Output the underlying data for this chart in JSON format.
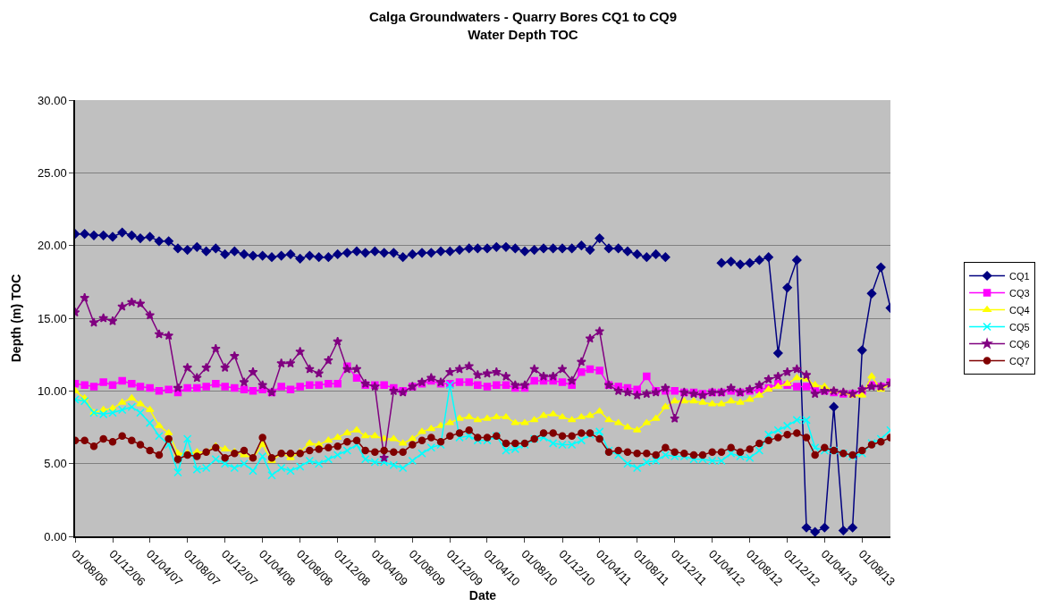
{
  "chart_data": {
    "type": "line",
    "title": "Calga Groundwaters - Quarry Bores CQ1 to CQ9",
    "subtitle": "Water Depth TOC",
    "xlabel": "Date",
    "ylabel": "Depth (m) TOC",
    "x": [
      "2006-08",
      "2006-09",
      "2006-10",
      "2006-11",
      "2006-12",
      "2007-01",
      "2007-02",
      "2007-03",
      "2007-04",
      "2007-05",
      "2007-06",
      "2007-07",
      "2007-08",
      "2007-09",
      "2007-10",
      "2007-11",
      "2007-12",
      "2008-01",
      "2008-02",
      "2008-03",
      "2008-04",
      "2008-05",
      "2008-06",
      "2008-07",
      "2008-08",
      "2008-09",
      "2008-10",
      "2008-11",
      "2008-12",
      "2009-01",
      "2009-02",
      "2009-03",
      "2009-04",
      "2009-05",
      "2009-06",
      "2009-07",
      "2009-08",
      "2009-09",
      "2009-10",
      "2009-11",
      "2009-12",
      "2010-01",
      "2010-02",
      "2010-03",
      "2010-04",
      "2010-05",
      "2010-06",
      "2010-07",
      "2010-08",
      "2010-09",
      "2010-10",
      "2010-11",
      "2010-12",
      "2011-01",
      "2011-02",
      "2011-03",
      "2011-04",
      "2011-05",
      "2011-06",
      "2011-07",
      "2011-08",
      "2011-09",
      "2011-10",
      "2011-11",
      "2011-12",
      "2012-01",
      "2012-02",
      "2012-03",
      "2012-04",
      "2012-05",
      "2012-06",
      "2012-07",
      "2012-08",
      "2012-09",
      "2012-10",
      "2012-11",
      "2012-12",
      "2013-01",
      "2013-02",
      "2013-03",
      "2013-04",
      "2013-05",
      "2013-06",
      "2013-07",
      "2013-08",
      "2013-09",
      "2013-10",
      "2013-11"
    ],
    "series": [
      {
        "name": "CQ1",
        "color": "#000080",
        "marker": "diamond",
        "values": [
          20.8,
          20.8,
          20.7,
          20.7,
          20.6,
          20.9,
          20.7,
          20.5,
          20.6,
          20.3,
          20.3,
          19.8,
          19.7,
          19.9,
          19.6,
          19.8,
          19.4,
          19.6,
          19.4,
          19.3,
          19.3,
          19.2,
          19.3,
          19.4,
          19.1,
          19.3,
          19.2,
          19.2,
          19.4,
          19.5,
          19.6,
          19.5,
          19.6,
          19.5,
          19.5,
          19.2,
          19.4,
          19.5,
          19.5,
          19.6,
          19.6,
          19.7,
          19.8,
          19.8,
          19.8,
          19.9,
          19.9,
          19.8,
          19.6,
          19.7,
          19.8,
          19.8,
          19.8,
          19.8,
          20.0,
          19.7,
          20.5,
          19.8,
          19.8,
          19.6,
          19.4,
          19.2,
          19.4,
          19.2,
          null,
          null,
          null,
          null,
          null,
          18.8,
          18.9,
          18.7,
          18.8,
          19.0,
          19.2,
          12.6,
          17.1,
          19.0,
          0.6,
          0.3,
          0.6,
          8.9,
          0.4,
          0.6,
          12.8,
          16.7,
          18.5,
          15.7
        ]
      },
      {
        "name": "CQ3",
        "color": "#ff00ff",
        "marker": "square",
        "values": [
          10.5,
          10.4,
          10.3,
          10.6,
          10.4,
          10.7,
          10.5,
          10.3,
          10.2,
          10.0,
          10.1,
          9.9,
          10.2,
          10.2,
          10.3,
          10.5,
          10.3,
          10.2,
          10.1,
          10.0,
          10.1,
          9.9,
          10.3,
          10.1,
          10.3,
          10.4,
          10.4,
          10.5,
          10.5,
          11.7,
          10.9,
          10.4,
          10.4,
          10.4,
          10.2,
          10.0,
          10.3,
          10.5,
          10.7,
          10.5,
          10.5,
          10.6,
          10.6,
          10.4,
          10.3,
          10.4,
          10.4,
          10.2,
          10.2,
          10.7,
          10.7,
          10.7,
          10.6,
          10.4,
          11.3,
          11.5,
          11.4,
          10.4,
          10.3,
          10.2,
          10.1,
          11.0,
          10.0,
          10.0,
          10.0,
          9.9,
          9.9,
          9.8,
          9.9,
          9.9,
          10.0,
          9.9,
          10.0,
          10.1,
          10.2,
          10.5,
          10.4,
          10.3,
          10.3,
          10.1,
          10.0,
          9.9,
          9.8,
          9.8,
          10.0,
          10.4,
          10.3,
          10.6
        ]
      },
      {
        "name": "CQ4",
        "color": "#ffff00",
        "marker": "triangle",
        "values": [
          10.0,
          9.5,
          8.5,
          8.7,
          8.8,
          9.2,
          9.5,
          9.1,
          8.7,
          7.6,
          7.1,
          5.7,
          5.7,
          5.8,
          5.8,
          6.2,
          6.0,
          5.8,
          5.6,
          5.4,
          6.3,
          5.2,
          5.7,
          5.4,
          5.8,
          6.4,
          6.3,
          6.6,
          6.8,
          7.1,
          7.3,
          6.9,
          6.9,
          6.7,
          6.7,
          6.4,
          6.7,
          7.2,
          7.4,
          7.6,
          7.8,
          8.1,
          8.2,
          8.0,
          8.1,
          8.2,
          8.2,
          7.8,
          7.8,
          8.0,
          8.3,
          8.4,
          8.2,
          8.0,
          8.2,
          8.3,
          8.6,
          8.0,
          7.8,
          7.5,
          7.3,
          7.8,
          8.1,
          8.9,
          9.3,
          9.3,
          9.3,
          9.2,
          9.1,
          9.1,
          9.3,
          9.2,
          9.4,
          9.7,
          10.1,
          10.3,
          10.5,
          10.9,
          10.8,
          10.4,
          10.3,
          10.0,
          9.9,
          9.7,
          9.7,
          11.0,
          10.1,
          10.5
        ]
      },
      {
        "name": "CQ5",
        "color": "#00ffff",
        "marker": "cross",
        "values": [
          9.4,
          9.3,
          8.5,
          8.4,
          8.5,
          8.7,
          8.9,
          8.5,
          7.8,
          6.9,
          6.3,
          4.4,
          6.7,
          4.6,
          4.7,
          5.3,
          5.0,
          4.7,
          5.0,
          4.5,
          5.5,
          4.2,
          4.7,
          4.5,
          4.8,
          5.2,
          5.0,
          5.3,
          5.6,
          5.9,
          6.3,
          5.3,
          5.1,
          5.1,
          4.9,
          4.7,
          5.2,
          5.7,
          6.1,
          6.3,
          10.4,
          6.8,
          6.9,
          6.6,
          6.6,
          6.9,
          5.9,
          6.0,
          6.3,
          6.7,
          6.8,
          6.4,
          6.3,
          6.3,
          6.6,
          7.0,
          7.2,
          5.9,
          5.6,
          5.0,
          4.7,
          5.1,
          5.2,
          5.6,
          5.5,
          5.5,
          5.3,
          5.3,
          5.2,
          5.2,
          5.7,
          5.5,
          5.4,
          5.9,
          7.0,
          7.3,
          7.6,
          8.0,
          8.0,
          6.1,
          5.9,
          5.9,
          5.7,
          5.5,
          5.7,
          6.4,
          6.7,
          7.3
        ]
      },
      {
        "name": "CQ6",
        "color": "#800080",
        "marker": "star",
        "values": [
          15.4,
          16.4,
          14.7,
          15.0,
          14.8,
          15.8,
          16.1,
          16.0,
          15.2,
          13.9,
          13.8,
          10.2,
          11.6,
          10.9,
          11.6,
          12.9,
          11.6,
          12.4,
          10.6,
          11.3,
          10.4,
          9.9,
          11.9,
          11.9,
          12.7,
          11.5,
          11.2,
          12.1,
          13.4,
          11.5,
          11.5,
          10.5,
          10.3,
          5.4,
          10.0,
          9.9,
          10.3,
          10.6,
          10.9,
          10.6,
          11.3,
          11.5,
          11.7,
          11.1,
          11.2,
          11.3,
          11.0,
          10.4,
          10.4,
          11.5,
          11.0,
          11.0,
          11.5,
          10.7,
          12.0,
          13.6,
          14.1,
          10.4,
          10.0,
          9.9,
          9.7,
          9.8,
          9.9,
          10.2,
          8.1,
          9.9,
          9.8,
          9.7,
          9.9,
          9.9,
          10.2,
          9.9,
          10.1,
          10.4,
          10.8,
          11.0,
          11.3,
          11.5,
          11.1,
          9.8,
          10.0,
          10.0,
          9.9,
          9.8,
          10.1,
          10.3,
          10.3,
          10.5
        ]
      },
      {
        "name": "CQ7",
        "color": "#800000",
        "marker": "circle",
        "values": [
          6.6,
          6.6,
          6.2,
          6.7,
          6.5,
          6.9,
          6.6,
          6.3,
          5.9,
          5.6,
          6.7,
          5.3,
          5.6,
          5.5,
          5.8,
          6.1,
          5.4,
          5.7,
          5.9,
          5.4,
          6.8,
          5.4,
          5.7,
          5.7,
          5.7,
          5.9,
          6.0,
          6.1,
          6.2,
          6.5,
          6.6,
          5.9,
          5.8,
          5.9,
          5.8,
          5.8,
          6.3,
          6.6,
          6.8,
          6.5,
          6.9,
          7.1,
          7.3,
          6.8,
          6.8,
          6.9,
          6.4,
          6.4,
          6.4,
          6.7,
          7.1,
          7.1,
          6.9,
          6.9,
          7.1,
          7.1,
          6.7,
          5.8,
          5.9,
          5.8,
          5.7,
          5.7,
          5.6,
          6.1,
          5.8,
          5.7,
          5.6,
          5.6,
          5.8,
          5.8,
          6.1,
          5.8,
          6.0,
          6.4,
          6.6,
          6.8,
          7.0,
          7.1,
          6.8,
          5.6,
          6.1,
          5.9,
          5.7,
          5.6,
          5.9,
          6.3,
          6.5,
          6.8
        ]
      }
    ],
    "xlim": [
      "2006-08-01",
      "2013-11-01"
    ],
    "xticks": [
      {
        "value": "2006-08-01",
        "label": "01/08/06"
      },
      {
        "value": "2006-12-01",
        "label": "01/12/06"
      },
      {
        "value": "2007-04-01",
        "label": "01/04/07"
      },
      {
        "value": "2007-08-01",
        "label": "01/08/07"
      },
      {
        "value": "2007-12-01",
        "label": "01/12/07"
      },
      {
        "value": "2008-04-01",
        "label": "01/04/08"
      },
      {
        "value": "2008-08-01",
        "label": "01/08/08"
      },
      {
        "value": "2008-12-01",
        "label": "01/12/08"
      },
      {
        "value": "2009-04-01",
        "label": "01/04/09"
      },
      {
        "value": "2009-08-01",
        "label": "01/08/09"
      },
      {
        "value": "2009-12-01",
        "label": "01/12/09"
      },
      {
        "value": "2010-04-01",
        "label": "01/04/10"
      },
      {
        "value": "2010-08-01",
        "label": "01/08/10"
      },
      {
        "value": "2010-12-01",
        "label": "01/12/10"
      },
      {
        "value": "2011-04-01",
        "label": "01/04/11"
      },
      {
        "value": "2011-08-01",
        "label": "01/08/11"
      },
      {
        "value": "2011-12-01",
        "label": "01/12/11"
      },
      {
        "value": "2012-04-01",
        "label": "01/04/12"
      },
      {
        "value": "2012-08-01",
        "label": "01/08/12"
      },
      {
        "value": "2012-12-01",
        "label": "01/12/12"
      },
      {
        "value": "2013-04-01",
        "label": "01/04/13"
      },
      {
        "value": "2013-08-01",
        "label": "01/08/13"
      }
    ],
    "ylim": [
      0,
      30
    ],
    "yticks": [
      {
        "value": 0,
        "label": "0.00"
      },
      {
        "value": 5,
        "label": "5.00"
      },
      {
        "value": 10,
        "label": "10.00"
      },
      {
        "value": 15,
        "label": "15.00"
      },
      {
        "value": 20,
        "label": "20.00"
      },
      {
        "value": 25,
        "label": "25.00"
      },
      {
        "value": 30,
        "label": "30.00"
      }
    ],
    "grid": "y",
    "legend": "right",
    "line_style": "solid"
  }
}
